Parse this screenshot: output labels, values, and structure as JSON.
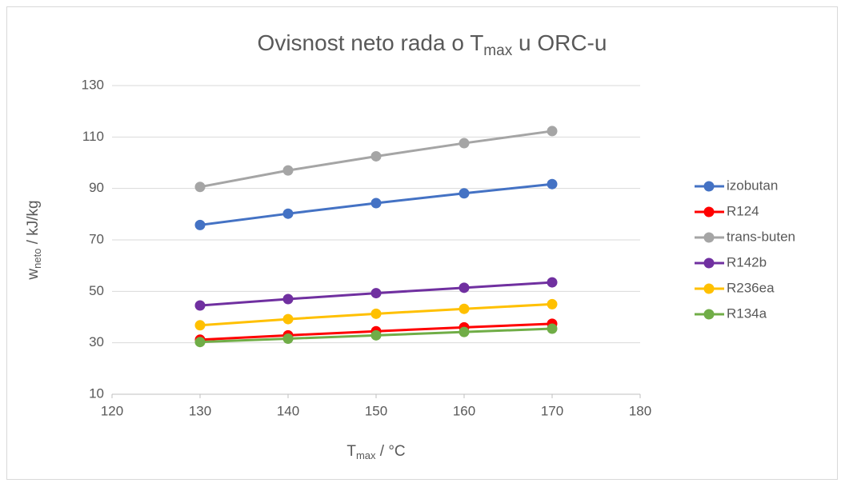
{
  "chart_data": {
    "type": "line",
    "title": {
      "main": "Ovisnost neto rada o T",
      "sub": "max",
      "rest": " u ORC-u"
    },
    "x_label": {
      "main": "T",
      "sub": "max",
      "rest": " / °C"
    },
    "y_label": {
      "main": "w",
      "sub": "neto",
      "rest": " / kJ/kg"
    },
    "x": [
      130,
      140,
      150,
      160,
      170
    ],
    "series": [
      {
        "name": "izobutan",
        "color": "#4472c4",
        "values": [
          75.8,
          80.2,
          84.3,
          88.1,
          91.7
        ]
      },
      {
        "name": "R124",
        "color": "#ff0000",
        "values": [
          31.2,
          32.9,
          34.5,
          36.0,
          37.4
        ]
      },
      {
        "name": "trans-buten",
        "color": "#a5a5a5",
        "values": [
          90.6,
          97.0,
          102.5,
          107.6,
          112.3
        ]
      },
      {
        "name": "R142b",
        "color": "#7030a0",
        "values": [
          44.5,
          47.0,
          49.3,
          51.4,
          53.5
        ]
      },
      {
        "name": "R236ea",
        "color": "#ffc000",
        "values": [
          36.8,
          39.2,
          41.3,
          43.2,
          45.0
        ]
      },
      {
        "name": "R134a",
        "color": "#70ad47",
        "values": [
          30.3,
          31.6,
          32.9,
          34.2,
          35.5
        ]
      }
    ],
    "xlim": [
      120,
      180
    ],
    "xticks": [
      120,
      130,
      140,
      150,
      160,
      170,
      180
    ],
    "ylim": [
      10,
      130
    ],
    "yticks": [
      10,
      30,
      50,
      70,
      90,
      110,
      130
    ],
    "grid": true,
    "legend": "right"
  }
}
